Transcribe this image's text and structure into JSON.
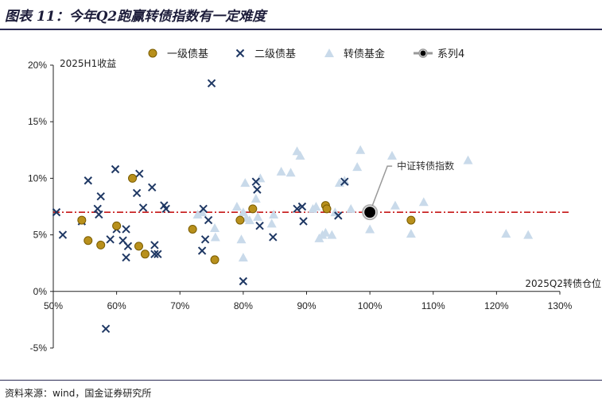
{
  "title": "图表 11：今年Q2跑赢转债指数有一定难度",
  "source": "资料来源：wind，国金证券研究所",
  "colors": {
    "grade1": "#b8901c",
    "grade2": "#1f3864",
    "fund": "#c9daea",
    "series4": "#000000",
    "refline": "#c00000"
  },
  "chart_data": {
    "type": "scatter",
    "xlabel": "2025Q2转债仓位",
    "ylabel": "2025H1收益",
    "x_ticks": [
      "50%",
      "60%",
      "70%",
      "80%",
      "90%",
      "100%",
      "110%",
      "120%",
      "130%"
    ],
    "y_ticks": [
      "20%",
      "15%",
      "10%",
      "5%",
      "0%",
      "-5%"
    ],
    "xlim": [
      0.5,
      1.3
    ],
    "ylim": [
      -0.05,
      0.2
    ],
    "reference_line_y": 0.07,
    "annotation": {
      "text": "中证转债指数",
      "x": 1.0,
      "y": 0.07
    },
    "series": [
      {
        "name": "一级债基",
        "marker": "circle",
        "points": [
          [
            0.545,
            0.063
          ],
          [
            0.555,
            0.045
          ],
          [
            0.575,
            0.041
          ],
          [
            0.6,
            0.058
          ],
          [
            0.625,
            0.1
          ],
          [
            0.635,
            0.04
          ],
          [
            0.645,
            0.033
          ],
          [
            0.72,
            0.055
          ],
          [
            0.755,
            0.028
          ],
          [
            0.795,
            0.063
          ],
          [
            0.815,
            0.073
          ],
          [
            0.93,
            0.076
          ],
          [
            0.932,
            0.073
          ],
          [
            1.065,
            0.063
          ]
        ]
      },
      {
        "name": "二级债基",
        "marker": "x",
        "points": [
          [
            0.505,
            0.07
          ],
          [
            0.515,
            0.05
          ],
          [
            0.545,
            0.062
          ],
          [
            0.555,
            0.098
          ],
          [
            0.57,
            0.073
          ],
          [
            0.572,
            0.068
          ],
          [
            0.575,
            0.084
          ],
          [
            0.583,
            -0.033
          ],
          [
            0.59,
            0.046
          ],
          [
            0.598,
            0.108
          ],
          [
            0.6,
            0.055
          ],
          [
            0.61,
            0.045
          ],
          [
            0.615,
            0.055
          ],
          [
            0.615,
            0.03
          ],
          [
            0.618,
            0.04
          ],
          [
            0.632,
            0.087
          ],
          [
            0.636,
            0.104
          ],
          [
            0.642,
            0.074
          ],
          [
            0.656,
            0.092
          ],
          [
            0.66,
            0.041
          ],
          [
            0.66,
            0.033
          ],
          [
            0.665,
            0.033
          ],
          [
            0.675,
            0.076
          ],
          [
            0.678,
            0.073
          ],
          [
            0.735,
            0.036
          ],
          [
            0.737,
            0.073
          ],
          [
            0.74,
            0.046
          ],
          [
            0.745,
            0.063
          ],
          [
            0.75,
            0.184
          ],
          [
            0.8,
            0.009
          ],
          [
            0.82,
            0.097
          ],
          [
            0.822,
            0.09
          ],
          [
            0.826,
            0.058
          ],
          [
            0.847,
            0.048
          ],
          [
            0.885,
            0.073
          ],
          [
            0.893,
            0.075
          ],
          [
            0.895,
            0.062
          ],
          [
            0.95,
            0.067
          ],
          [
            0.96,
            0.097
          ]
        ]
      },
      {
        "name": "转债基金",
        "marker": "triangle",
        "points": [
          [
            0.728,
            0.068
          ],
          [
            0.735,
            0.07
          ],
          [
            0.755,
            0.056
          ],
          [
            0.756,
            0.048
          ],
          [
            0.79,
            0.075
          ],
          [
            0.797,
            0.046
          ],
          [
            0.8,
            0.07
          ],
          [
            0.8,
            0.03
          ],
          [
            0.803,
            0.096
          ],
          [
            0.805,
            0.065
          ],
          [
            0.81,
            0.063
          ],
          [
            0.82,
            0.082
          ],
          [
            0.823,
            0.066
          ],
          [
            0.827,
            0.1
          ],
          [
            0.845,
            0.06
          ],
          [
            0.848,
            0.068
          ],
          [
            0.86,
            0.106
          ],
          [
            0.875,
            0.105
          ],
          [
            0.885,
            0.124
          ],
          [
            0.89,
            0.12
          ],
          [
            0.91,
            0.073
          ],
          [
            0.915,
            0.075
          ],
          [
            0.92,
            0.047
          ],
          [
            0.925,
            0.05
          ],
          [
            0.93,
            0.052
          ],
          [
            0.94,
            0.05
          ],
          [
            0.945,
            0.07
          ],
          [
            0.952,
            0.096
          ],
          [
            0.96,
            0.098
          ],
          [
            0.97,
            0.073
          ],
          [
            0.98,
            0.11
          ],
          [
            0.985,
            0.125
          ],
          [
            1.0,
            0.055
          ],
          [
            1.035,
            0.12
          ],
          [
            1.04,
            0.076
          ],
          [
            1.065,
            0.051
          ],
          [
            1.085,
            0.079
          ],
          [
            1.155,
            0.116
          ],
          [
            1.215,
            0.051
          ],
          [
            1.25,
            0.05
          ]
        ]
      },
      {
        "name": "系列4",
        "marker": "circle-large",
        "points": [
          [
            1.0,
            0.07
          ]
        ]
      }
    ]
  }
}
